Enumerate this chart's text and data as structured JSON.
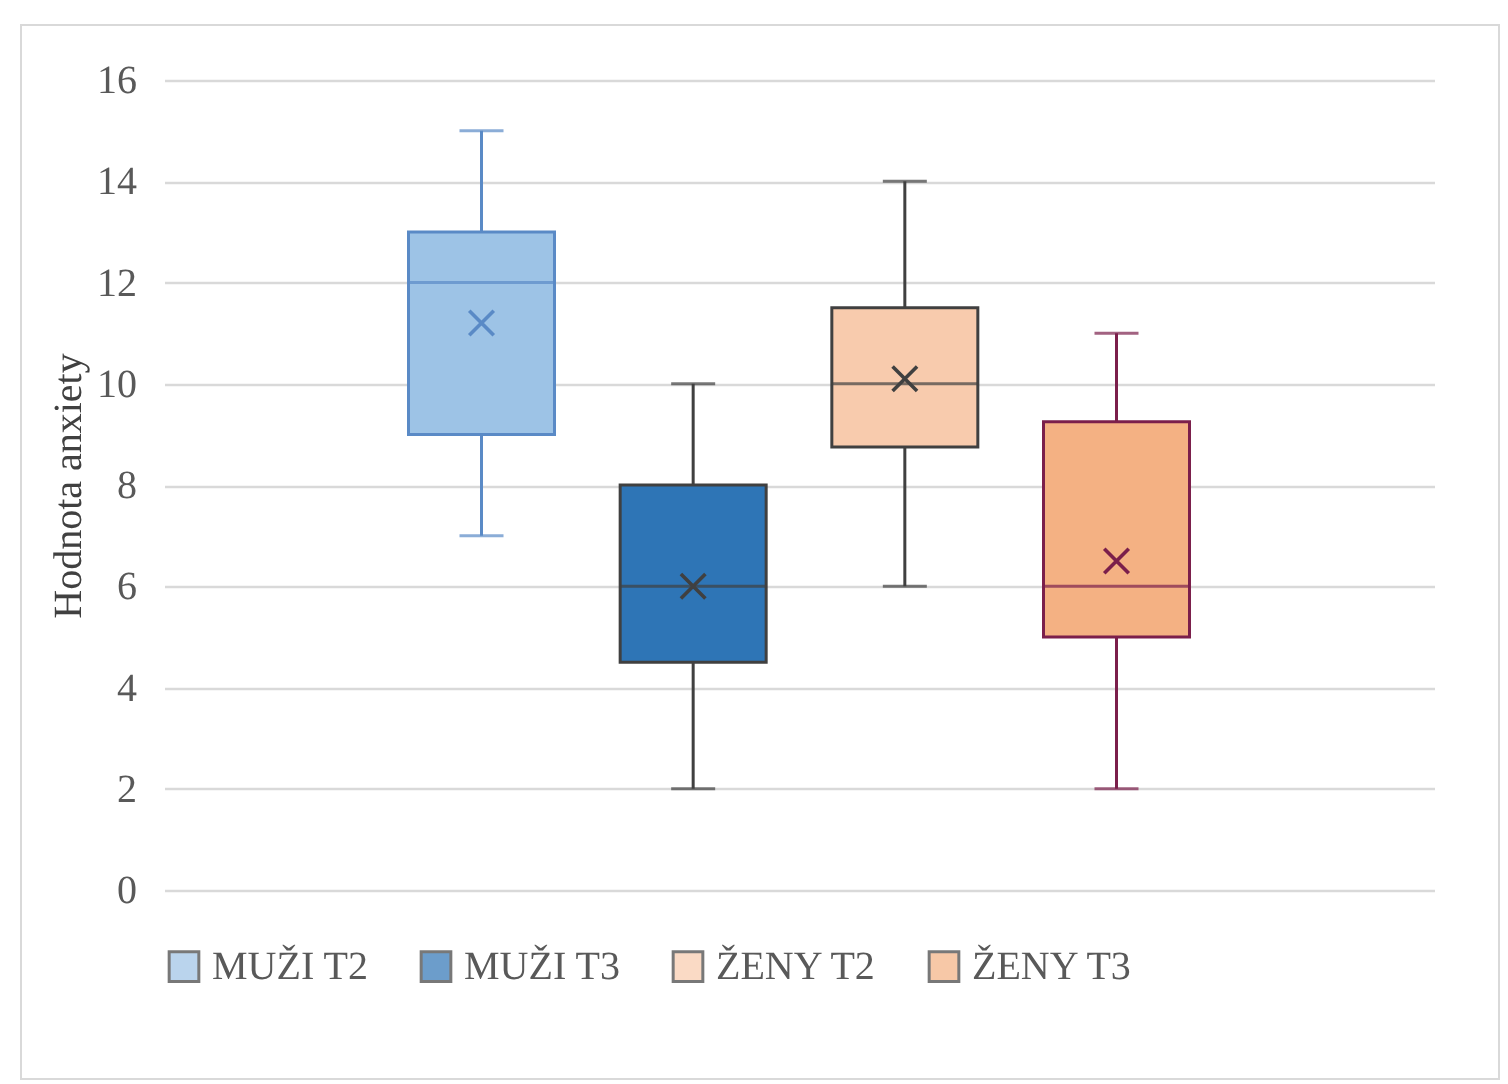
{
  "chart_data": {
    "type": "box",
    "categories": [
      null
    ],
    "ylabel": "Hodnota anxiety",
    "ylim": [
      0,
      16
    ],
    "yticks": [
      0,
      2,
      4,
      6,
      8,
      10,
      12,
      14,
      16
    ],
    "grid": "y",
    "legend": "bottom",
    "marker": "cross",
    "series": [
      {
        "name": "MUŽI T2",
        "color": "#9dc3e6",
        "boxes": [
          {
            "low": 7,
            "q1": 9,
            "median": 12,
            "q3": 13,
            "high": 15,
            "mean": 11.2
          }
        ]
      },
      {
        "name": "MUŽI T3",
        "color": "#2e75b6",
        "boxes": [
          {
            "low": 2,
            "q1": 4.5,
            "median": 6,
            "q3": 8,
            "high": 10,
            "mean": 6
          }
        ]
      },
      {
        "name": "ŽENY T2",
        "color": "#f8cbad",
        "boxes": [
          {
            "low": 6,
            "q1": 8.75,
            "median": 10,
            "q3": 11.5,
            "high": 14,
            "mean": 10.1
          }
        ]
      },
      {
        "name": "ŽENY T3",
        "color": "#f4b183",
        "boxes": [
          {
            "low": 2,
            "q1": 5,
            "median": 6,
            "q3": 9.25,
            "high": 11,
            "mean": 6.5
          }
        ]
      }
    ]
  }
}
